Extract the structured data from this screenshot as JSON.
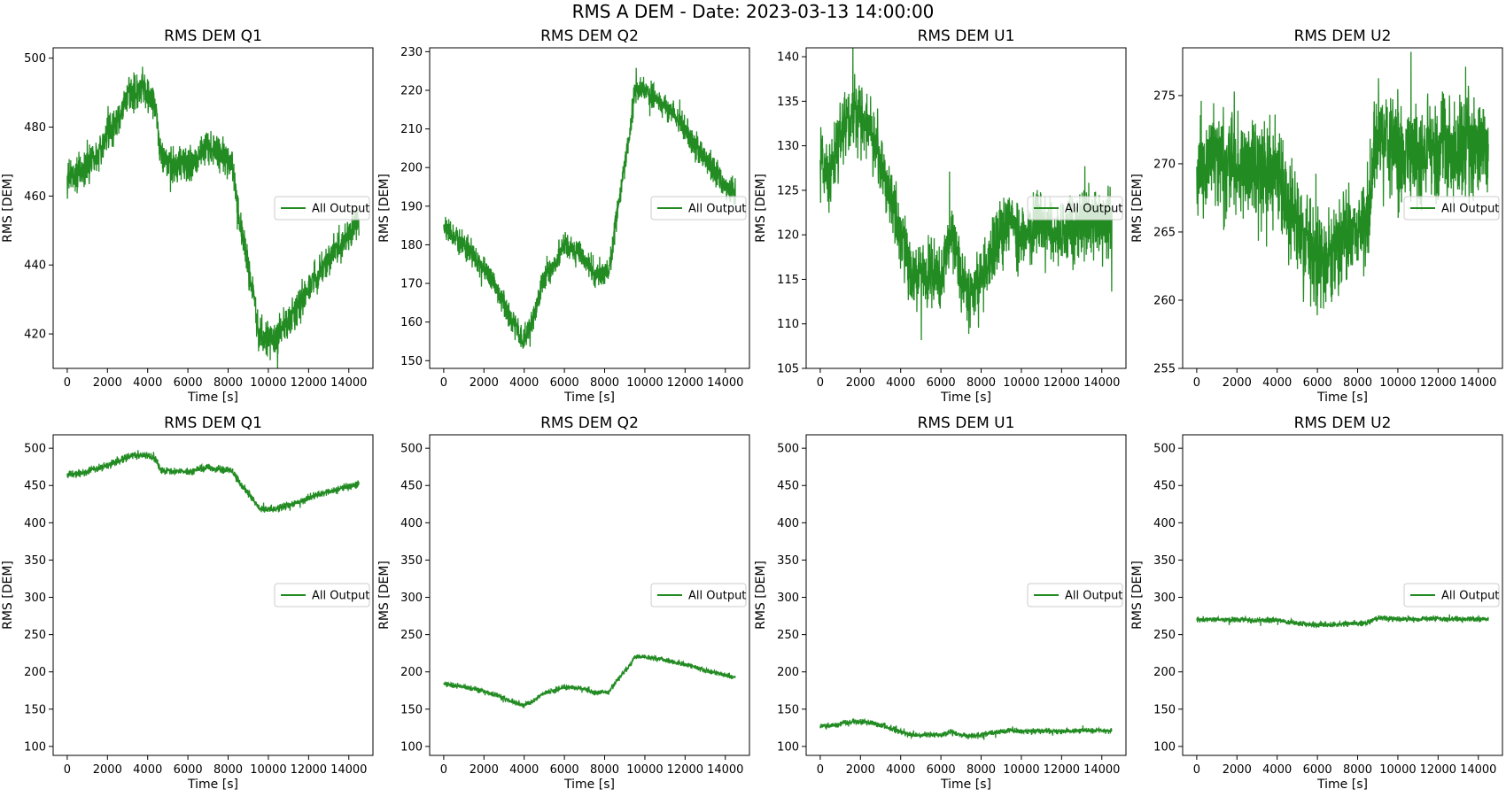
{
  "figure": {
    "title": "RMS A DEM - Date: 2023-03-13 14:00:00"
  },
  "colors": {
    "series": "#228b22",
    "axes": "#000000",
    "background": "#ffffff",
    "legend_border": "#cccccc"
  },
  "chart_data": [
    {
      "type": "line",
      "title": "RMS DEM Q1",
      "xlabel": "Time [s]",
      "ylabel": "RMS [DEM]",
      "xlim": [
        -700,
        15200
      ],
      "ylim": [
        410,
        503
      ],
      "xticks": [
        0,
        2000,
        4000,
        6000,
        8000,
        10000,
        12000,
        14000
      ],
      "yticks": [
        420,
        440,
        460,
        480,
        500
      ],
      "grid": false,
      "legend": "center-right",
      "noise": 4.5,
      "series": [
        {
          "name": "All Output",
          "x": [
            0,
            800,
            1600,
            2400,
            3200,
            3800,
            4300,
            4700,
            5200,
            5600,
            6000,
            6500,
            7000,
            7600,
            8200,
            8600,
            8900,
            9300,
            9500,
            9700,
            10300,
            10800,
            11500,
            12200,
            13000,
            13800,
            14500
          ],
          "y": [
            465,
            467,
            474,
            481,
            490,
            491,
            488,
            471,
            468,
            470,
            468,
            472,
            474,
            472,
            470,
            452,
            443,
            430,
            420,
            419,
            418,
            422,
            428,
            435,
            442,
            447,
            452
          ]
        }
      ]
    },
    {
      "type": "line",
      "title": "RMS DEM Q2",
      "xlabel": "Time [s]",
      "ylabel": "RMS [DEM]",
      "xlim": [
        -700,
        15200
      ],
      "ylim": [
        148,
        231
      ],
      "xticks": [
        0,
        2000,
        4000,
        6000,
        8000,
        10000,
        12000,
        14000
      ],
      "yticks": [
        150,
        160,
        170,
        180,
        190,
        200,
        210,
        220,
        230
      ],
      "grid": false,
      "legend": "center-right",
      "noise": 3,
      "series": [
        {
          "name": "All Output",
          "x": [
            0,
            1000,
            2000,
            2700,
            3300,
            4000,
            4400,
            5000,
            5500,
            6000,
            6800,
            7500,
            8200,
            8600,
            8900,
            9300,
            9500,
            10000,
            11000,
            12000,
            13000,
            14000,
            14500
          ],
          "y": [
            184,
            180,
            174,
            168,
            161,
            155,
            160,
            172,
            175,
            180,
            178,
            172,
            173,
            188,
            198,
            210,
            220,
            220,
            216,
            210,
            202,
            195,
            193
          ]
        }
      ]
    },
    {
      "type": "line",
      "title": "RMS DEM U1",
      "xlabel": "Time [s]",
      "ylabel": "RMS [DEM]",
      "xlim": [
        -700,
        15200
      ],
      "ylim": [
        105,
        141
      ],
      "xticks": [
        0,
        2000,
        4000,
        6000,
        8000,
        10000,
        12000,
        14000
      ],
      "yticks": [
        105,
        110,
        115,
        120,
        125,
        130,
        135,
        140
      ],
      "grid": false,
      "legend": "center-right",
      "noise": 3.2,
      "series": [
        {
          "name": "All Output",
          "x": [
            0,
            500,
            1000,
            1500,
            2000,
            2500,
            3000,
            3500,
            4000,
            4500,
            5000,
            5500,
            6000,
            6500,
            7000,
            7500,
            8000,
            8500,
            9000,
            9500,
            10000,
            11000,
            12000,
            13000,
            14000,
            14500
          ],
          "y": [
            128,
            127,
            131,
            133,
            133,
            132,
            128,
            124,
            120,
            116,
            115,
            116,
            115,
            120,
            115,
            114,
            115,
            118,
            120,
            122,
            120,
            121,
            120,
            121,
            121,
            121
          ]
        }
      ]
    },
    {
      "type": "line",
      "title": "RMS DEM U2",
      "xlabel": "Time [s]",
      "ylabel": "RMS [DEM]",
      "xlim": [
        -700,
        15200
      ],
      "ylim": [
        255,
        278.5
      ],
      "xticks": [
        0,
        2000,
        4000,
        6000,
        8000,
        10000,
        12000,
        14000
      ],
      "yticks": [
        255,
        260,
        265,
        270,
        275
      ],
      "grid": false,
      "legend": "center-right",
      "noise": 3.2,
      "series": [
        {
          "name": "All Output",
          "x": [
            0,
            1000,
            2000,
            3000,
            4000,
            4500,
            5000,
            5500,
            6000,
            6500,
            7000,
            7500,
            8000,
            8500,
            8800,
            9000,
            10000,
            11000,
            12000,
            13000,
            14000,
            14500
          ],
          "y": [
            270,
            270,
            270,
            269,
            270,
            267,
            265,
            264,
            263,
            263,
            264,
            265,
            265,
            266,
            270,
            272,
            271,
            271,
            271,
            271,
            271,
            271
          ]
        }
      ]
    },
    {
      "type": "line",
      "title": "RMS DEM Q1",
      "xlabel": "Time [s]",
      "ylabel": "RMS [DEM]",
      "xlim": [
        -700,
        15200
      ],
      "ylim": [
        88,
        518
      ],
      "xticks": [
        0,
        2000,
        4000,
        6000,
        8000,
        10000,
        12000,
        14000
      ],
      "yticks": [
        100,
        150,
        200,
        250,
        300,
        350,
        400,
        450,
        500
      ],
      "grid": false,
      "legend": "center-right",
      "noise": 4.5,
      "series": [
        {
          "name": "All Output",
          "x": [
            0,
            800,
            1600,
            2400,
            3200,
            3800,
            4300,
            4700,
            5200,
            5600,
            6000,
            6500,
            7000,
            7600,
            8200,
            8600,
            8900,
            9300,
            9500,
            9700,
            10300,
            10800,
            11500,
            12200,
            13000,
            13800,
            14500
          ],
          "y": [
            465,
            467,
            474,
            481,
            490,
            491,
            488,
            471,
            468,
            470,
            468,
            472,
            474,
            472,
            470,
            452,
            443,
            430,
            420,
            419,
            418,
            422,
            428,
            435,
            442,
            447,
            452
          ]
        }
      ]
    },
    {
      "type": "line",
      "title": "RMS DEM Q2",
      "xlabel": "Time [s]",
      "ylabel": "RMS [DEM]",
      "xlim": [
        -700,
        15200
      ],
      "ylim": [
        88,
        518
      ],
      "xticks": [
        0,
        2000,
        4000,
        6000,
        8000,
        10000,
        12000,
        14000
      ],
      "yticks": [
        100,
        150,
        200,
        250,
        300,
        350,
        400,
        450,
        500
      ],
      "grid": false,
      "legend": "center-right",
      "noise": 3,
      "series": [
        {
          "name": "All Output",
          "x": [
            0,
            1000,
            2000,
            2700,
            3300,
            4000,
            4400,
            5000,
            5500,
            6000,
            6800,
            7500,
            8200,
            8600,
            8900,
            9300,
            9500,
            10000,
            11000,
            12000,
            13000,
            14000,
            14500
          ],
          "y": [
            184,
            180,
            174,
            168,
            161,
            155,
            160,
            172,
            175,
            180,
            178,
            172,
            173,
            188,
            198,
            210,
            220,
            220,
            216,
            210,
            202,
            195,
            193
          ]
        }
      ]
    },
    {
      "type": "line",
      "title": "RMS DEM U1",
      "xlabel": "Time [s]",
      "ylabel": "RMS [DEM]",
      "xlim": [
        -700,
        15200
      ],
      "ylim": [
        88,
        518
      ],
      "xticks": [
        0,
        2000,
        4000,
        6000,
        8000,
        10000,
        12000,
        14000
      ],
      "yticks": [
        100,
        150,
        200,
        250,
        300,
        350,
        400,
        450,
        500
      ],
      "grid": false,
      "legend": "center-right",
      "noise": 3.2,
      "series": [
        {
          "name": "All Output",
          "x": [
            0,
            500,
            1000,
            1500,
            2000,
            2500,
            3000,
            3500,
            4000,
            4500,
            5000,
            5500,
            6000,
            6500,
            7000,
            7500,
            8000,
            8500,
            9000,
            9500,
            10000,
            11000,
            12000,
            13000,
            14000,
            14500
          ],
          "y": [
            128,
            127,
            131,
            133,
            133,
            132,
            128,
            124,
            120,
            116,
            115,
            116,
            115,
            120,
            115,
            114,
            115,
            118,
            120,
            122,
            120,
            121,
            120,
            121,
            121,
            121
          ]
        }
      ]
    },
    {
      "type": "line",
      "title": "RMS DEM U2",
      "xlabel": "Time [s]",
      "ylabel": "RMS [DEM]",
      "xlim": [
        -700,
        15200
      ],
      "ylim": [
        88,
        518
      ],
      "xticks": [
        0,
        2000,
        4000,
        6000,
        8000,
        10000,
        12000,
        14000
      ],
      "yticks": [
        100,
        150,
        200,
        250,
        300,
        350,
        400,
        450,
        500
      ],
      "grid": false,
      "legend": "center-right",
      "noise": 3.2,
      "series": [
        {
          "name": "All Output",
          "x": [
            0,
            1000,
            2000,
            3000,
            4000,
            4500,
            5000,
            5500,
            6000,
            6500,
            7000,
            7500,
            8000,
            8500,
            8800,
            9000,
            10000,
            11000,
            12000,
            13000,
            14000,
            14500
          ],
          "y": [
            270,
            270,
            270,
            269,
            270,
            267,
            265,
            264,
            263,
            263,
            264,
            265,
            265,
            266,
            270,
            272,
            271,
            271,
            271,
            271,
            271,
            271
          ]
        }
      ]
    }
  ]
}
